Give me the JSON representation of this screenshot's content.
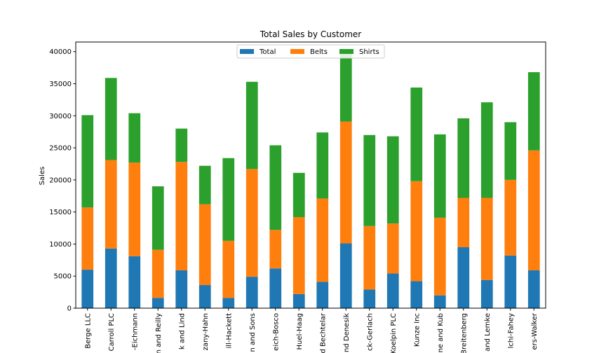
{
  "chart_data": {
    "type": "bar",
    "stacked": true,
    "title": "Total Sales by Customer",
    "xlabel": "",
    "ylabel": "Sales",
    "ylim": [
      0,
      41500
    ],
    "yticks": [
      0,
      5000,
      10000,
      15000,
      20000,
      25000,
      30000,
      35000,
      40000
    ],
    "legend": {
      "placement": "top-center",
      "columns": 3
    },
    "grid": false,
    "categories": [
      "Berge LLC",
      "Carroll PLC",
      "-Eichmann",
      "n and Reilly",
      "k and Lind",
      "zany-Hahn",
      "ill-Hackett",
      "n and Sons",
      "eich-Bosco",
      "Huel-Haag",
      "d Bechtelar",
      "nd Denesik",
      "ck-Gerlach",
      "Koelpin PLC",
      "Kunze Inc",
      "ne and Kub",
      "Breitenberg",
      "and Lemke",
      "lchi-Fahey",
      "ers-Walker"
    ],
    "series": [
      {
        "name": "Total",
        "color": "#1f77b4",
        "values": [
          6000,
          9300,
          8100,
          1600,
          5900,
          3600,
          1600,
          4900,
          6200,
          2200,
          4100,
          10100,
          2900,
          5400,
          4200,
          2000,
          9500,
          4400,
          8200,
          5900
        ]
      },
      {
        "name": "Belts",
        "color": "#ff7f0e",
        "values": [
          9700,
          13800,
          14600,
          7500,
          16900,
          12600,
          8900,
          16800,
          6000,
          12000,
          13000,
          19000,
          9900,
          7800,
          15600,
          12100,
          7700,
          12800,
          11800,
          18700
        ]
      },
      {
        "name": "Shirts",
        "color": "#2ca02c",
        "values": [
          14400,
          12800,
          7700,
          9900,
          5200,
          6000,
          12900,
          13600,
          13200,
          6900,
          10300,
          10900,
          14200,
          13600,
          14600,
          13000,
          12400,
          14900,
          9000,
          12200
        ]
      }
    ]
  }
}
